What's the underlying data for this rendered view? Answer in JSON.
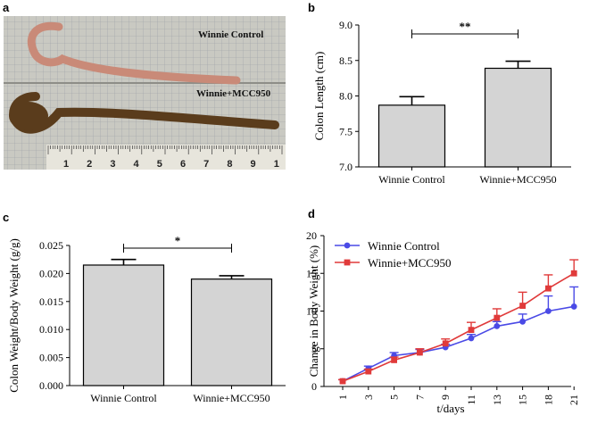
{
  "figure": {
    "panel_labels": [
      "a",
      "b",
      "c",
      "d"
    ],
    "photo": {
      "label_top": "Winnie Control",
      "label_bottom": "Winnie+MCC950",
      "ruler_numbers": [
        "1",
        "2",
        "3",
        "4",
        "5",
        "6",
        "7",
        "8",
        "9",
        "1"
      ],
      "colors": {
        "background": "#c9c9c2",
        "grid": "#9aa0a4",
        "control_tissue": "#c98a78",
        "treated_tissue": "#5a3c1c"
      }
    }
  },
  "chart_data": [
    {
      "id": "b",
      "type": "bar",
      "categories": [
        "Winnie Control",
        "Winnie+MCC950"
      ],
      "values": [
        7.87,
        8.39
      ],
      "errors": [
        0.12,
        0.1
      ],
      "ylabel": "Colon Length (cm)",
      "xlabel": "",
      "ylim": [
        7.0,
        9.0
      ],
      "yticks": [
        "7.0",
        "7.5",
        "8.0",
        "8.5",
        "9.0"
      ],
      "significance": "**",
      "colors": {
        "bar": "#d4d4d4",
        "edge": "#000000"
      }
    },
    {
      "id": "c",
      "type": "bar",
      "categories": [
        "Winnie Control",
        "Winnie+MCC950"
      ],
      "values": [
        0.0215,
        0.019
      ],
      "errors": [
        0.001,
        0.0006
      ],
      "ylabel": "Colon Weight/Body Weight (g/g)",
      "xlabel": "",
      "ylim": [
        0,
        0.025
      ],
      "yticks": [
        "0.000",
        "0.005",
        "0.010",
        "0.015",
        "0.020",
        "0.025"
      ],
      "significance": "*",
      "colors": {
        "bar": "#d4d4d4",
        "edge": "#000000"
      }
    },
    {
      "id": "d",
      "type": "line",
      "x": [
        "1",
        "3",
        "5",
        "7",
        "9",
        "11",
        "13",
        "15",
        "18",
        "21"
      ],
      "series": [
        {
          "name": "Winnie Control",
          "values": [
            0.7,
            2.4,
            4.1,
            4.5,
            5.2,
            6.4,
            8.0,
            8.6,
            10.0,
            10.6
          ],
          "errors": [
            0.2,
            0.3,
            0.4,
            0.4,
            0.4,
            0.5,
            0.6,
            1.0,
            2.0,
            2.6
          ],
          "color": "#4a4ae6",
          "marker": "circle"
        },
        {
          "name": "Winnie+MCC950",
          "values": [
            0.7,
            2.0,
            3.5,
            4.5,
            5.7,
            7.5,
            9.1,
            10.7,
            13.0,
            15.0
          ],
          "errors": [
            0.2,
            0.3,
            0.4,
            0.5,
            0.6,
            1.0,
            1.2,
            1.8,
            1.8,
            1.8
          ],
          "color": "#e03a3a",
          "marker": "square"
        }
      ],
      "ylabel": "Change in Body Weight (%)",
      "xlabel": "t/days",
      "ylim": [
        0,
        20
      ],
      "yticks": [
        "0",
        "5",
        "10",
        "15",
        "20"
      ],
      "legend": "top-left"
    }
  ]
}
